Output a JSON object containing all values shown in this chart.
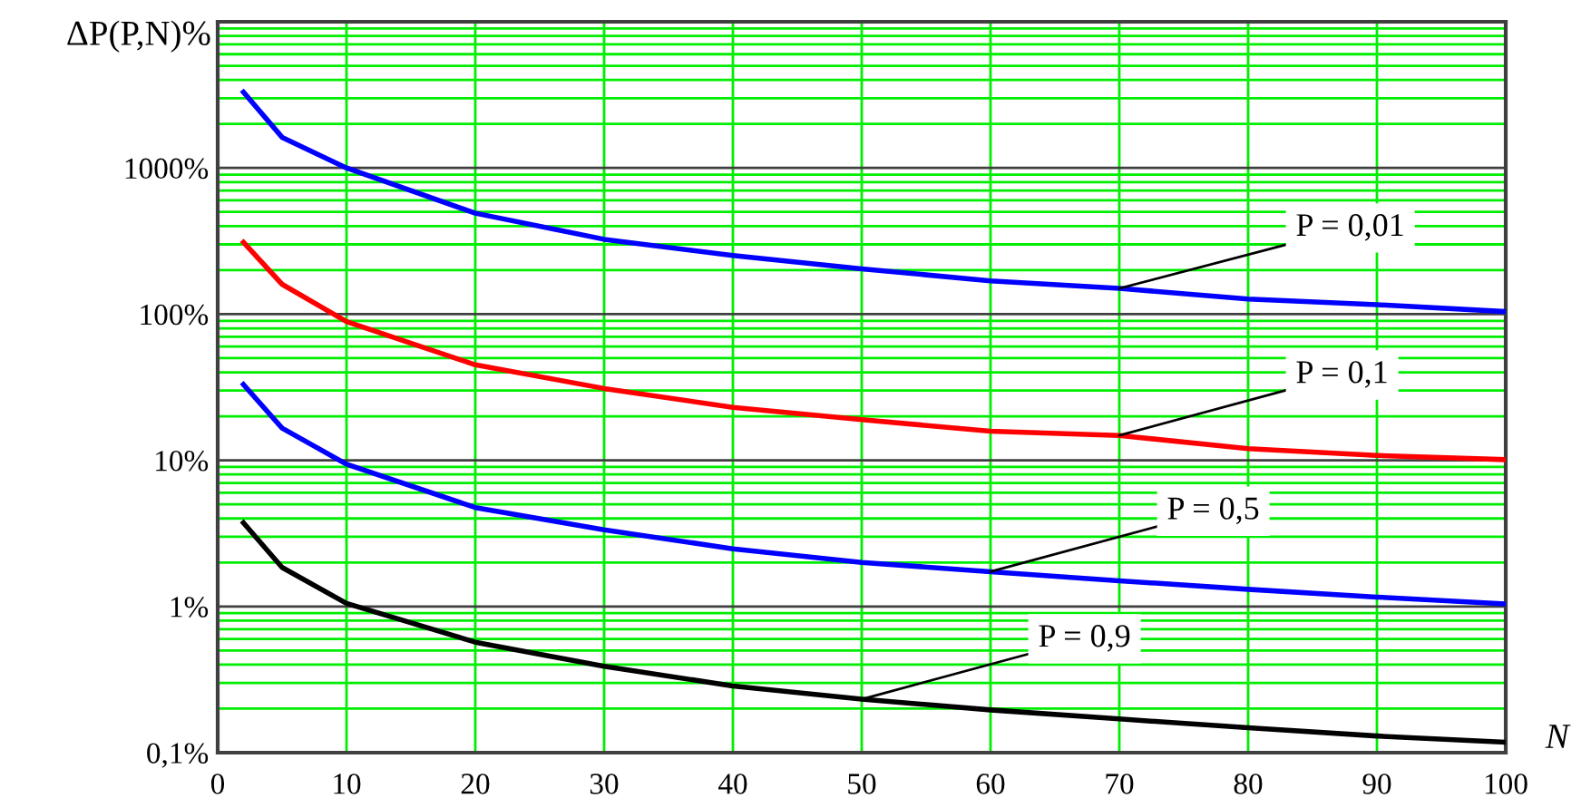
{
  "chart_data": {
    "type": "line",
    "xlabel": "N",
    "ylabel": "ΔP(P,N)%",
    "x": [
      2,
      5,
      10,
      20,
      30,
      40,
      50,
      60,
      70,
      80,
      90,
      100
    ],
    "series": [
      {
        "color": "#0000ff",
        "values": [
          3300,
          1620,
          1000,
          490,
          325,
          252,
          204,
          169,
          150,
          127,
          116,
          104
        ]
      },
      {
        "color": "#ff0000",
        "values": [
          310,
          160,
          89,
          45,
          31,
          23,
          19,
          15.8,
          14.8,
          12,
          10.8,
          10.1
        ]
      },
      {
        "color": "#0000ff",
        "values": [
          33,
          16.6,
          9.4,
          4.75,
          3.35,
          2.48,
          2.0,
          1.73,
          1.5,
          1.31,
          1.16,
          1.04
        ]
      },
      {
        "color": "#000000",
        "values": [
          3.74,
          1.85,
          1.05,
          0.57,
          0.39,
          0.286,
          0.232,
          0.196,
          0.17,
          0.148,
          0.13,
          0.118
        ]
      }
    ],
    "annotations": [
      {
        "text": "P = 0,01",
        "x": 70,
        "y": 150
      },
      {
        "text": "P = 0,1",
        "x": 70,
        "y": 14.8
      },
      {
        "text": "P = 0,5",
        "x": 60,
        "y": 1.73
      },
      {
        "text": "P = 0,9",
        "x": 50,
        "y": 0.232
      }
    ],
    "log": "y",
    "xlim": [
      0,
      100
    ],
    "ylim": [
      0.1,
      10000
    ],
    "xticks": [
      0,
      10,
      20,
      30,
      40,
      50,
      60,
      70,
      80,
      90,
      100
    ],
    "yticks": [
      {
        "value": 0.1,
        "label": "0,1%"
      },
      {
        "value": 1,
        "label": "1%"
      },
      {
        "value": 10,
        "label": "10%"
      },
      {
        "value": 100,
        "label": "100%"
      },
      {
        "value": 1000,
        "label": "1000%"
      }
    ],
    "grid": true,
    "line_style": "solid",
    "marker": "none",
    "legend": false
  }
}
